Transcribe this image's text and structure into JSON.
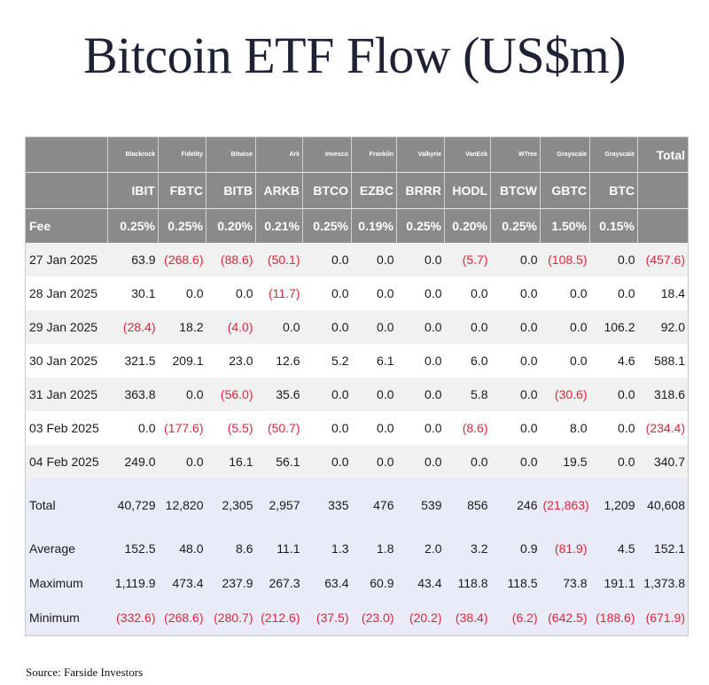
{
  "title": "Bitcoin ETF Flow (US$m)",
  "source": "Source: Farside Investors",
  "table": {
    "issuers": [
      "Blackrock",
      "Fidelity",
      "Bitwise",
      "Ark",
      "Invesco",
      "Franklin",
      "Valkyrie",
      "VanEck",
      "WTree",
      "Grayscale",
      "Grayscale"
    ],
    "total_header": "Total",
    "tickers": [
      "IBIT",
      "FBTC",
      "BITB",
      "ARKB",
      "BTCO",
      "EZBC",
      "BRRR",
      "HODL",
      "BTCW",
      "GBTC",
      "BTC"
    ],
    "fee_label": "Fee",
    "fees": [
      "0.25%",
      "0.25%",
      "0.20%",
      "0.21%",
      "0.25%",
      "0.19%",
      "0.25%",
      "0.20%",
      "0.25%",
      "1.50%",
      "0.15%"
    ],
    "rows": [
      {
        "date": "27 Jan 2025",
        "values": [
          "63.9",
          "(268.6)",
          "(88.6)",
          "(50.1)",
          "0.0",
          "0.0",
          "0.0",
          "(5.7)",
          "0.0",
          "(108.5)",
          "0.0"
        ],
        "total": "(457.6)"
      },
      {
        "date": "28 Jan 2025",
        "values": [
          "30.1",
          "0.0",
          "0.0",
          "(11.7)",
          "0.0",
          "0.0",
          "0.0",
          "0.0",
          "0.0",
          "0.0",
          "0.0"
        ],
        "total": "18.4"
      },
      {
        "date": "29 Jan 2025",
        "values": [
          "(28.4)",
          "18.2",
          "(4.0)",
          "0.0",
          "0.0",
          "0.0",
          "0.0",
          "0.0",
          "0.0",
          "0.0",
          "106.2"
        ],
        "total": "92.0"
      },
      {
        "date": "30 Jan 2025",
        "values": [
          "321.5",
          "209.1",
          "23.0",
          "12.6",
          "5.2",
          "6.1",
          "0.0",
          "6.0",
          "0.0",
          "0.0",
          "4.6"
        ],
        "total": "588.1"
      },
      {
        "date": "31 Jan 2025",
        "values": [
          "363.8",
          "0.0",
          "(56.0)",
          "35.6",
          "0.0",
          "0.0",
          "0.0",
          "5.8",
          "0.0",
          "(30.6)",
          "0.0"
        ],
        "total": "318.6"
      },
      {
        "date": "03 Feb 2025",
        "values": [
          "0.0",
          "(177.6)",
          "(5.5)",
          "(50.7)",
          "0.0",
          "0.0",
          "0.0",
          "(8.6)",
          "0.0",
          "8.0",
          "0.0"
        ],
        "total": "(234.4)"
      },
      {
        "date": "04 Feb 2025",
        "values": [
          "249.0",
          "0.0",
          "16.1",
          "56.1",
          "0.0",
          "0.0",
          "0.0",
          "0.0",
          "0.0",
          "19.5",
          "0.0"
        ],
        "total": "340.7"
      }
    ],
    "stats": [
      {
        "label": "Total",
        "values": [
          "40,729",
          "12,820",
          "2,305",
          "2,957",
          "335",
          "476",
          "539",
          "856",
          "246",
          "(21,863)",
          "1,209"
        ],
        "total": "40,608"
      },
      {
        "label": "Average",
        "values": [
          "152.5",
          "48.0",
          "8.6",
          "11.1",
          "1.3",
          "1.8",
          "2.0",
          "3.2",
          "0.9",
          "(81.9)",
          "4.5"
        ],
        "total": "152.1"
      },
      {
        "label": "Maximum",
        "values": [
          "1,119.9",
          "473.4",
          "237.9",
          "267.3",
          "63.4",
          "60.9",
          "43.4",
          "118.8",
          "118.5",
          "73.8",
          "191.1"
        ],
        "total": "1,373.8"
      },
      {
        "label": "Minimum",
        "values": [
          "(332.6)",
          "(268.6)",
          "(280.7)",
          "(212.6)",
          "(37.5)",
          "(23.0)",
          "(20.2)",
          "(38.4)",
          "(6.2)",
          "(642.5)",
          "(188.6)"
        ],
        "total": "(671.9)"
      }
    ]
  },
  "colors": {
    "negative": "#e0243a",
    "header_bg": "#8a8a8a",
    "stats_bg": "#e9ecf8",
    "title": "#1f2235"
  }
}
